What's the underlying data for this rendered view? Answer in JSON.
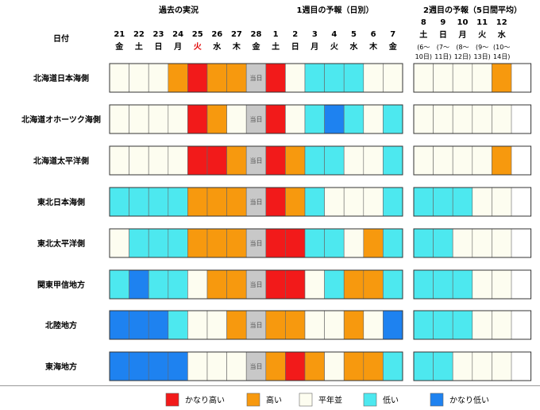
{
  "chart_data": {
    "type": "heatmap",
    "section_titles": [
      "過去の実況",
      "1週目の予報（日別）",
      "2週目の予報（5日間平均）"
    ],
    "row_header": "日付",
    "today_label": "当日",
    "columns_daily": [
      {
        "day": "21",
        "weekday": "金"
      },
      {
        "day": "22",
        "weekday": "土"
      },
      {
        "day": "23",
        "weekday": "日"
      },
      {
        "day": "24",
        "weekday": "月"
      },
      {
        "day": "25",
        "weekday": "火",
        "weekday_color": "#e00000"
      },
      {
        "day": "26",
        "weekday": "水"
      },
      {
        "day": "27",
        "weekday": "木"
      },
      {
        "day": "28",
        "weekday": "金"
      },
      {
        "day": "1",
        "weekday": "土"
      },
      {
        "day": "2",
        "weekday": "日"
      },
      {
        "day": "3",
        "weekday": "月"
      },
      {
        "day": "4",
        "weekday": "火"
      },
      {
        "day": "5",
        "weekday": "水"
      },
      {
        "day": "6",
        "weekday": "木"
      },
      {
        "day": "7",
        "weekday": "金"
      }
    ],
    "columns_week2": [
      {
        "day": "8",
        "weekday": "土",
        "range_open": "(6～",
        "range_close": "10日)"
      },
      {
        "day": "9",
        "weekday": "日",
        "range_open": "(7～",
        "range_close": "11日)"
      },
      {
        "day": "10",
        "weekday": "月",
        "range_open": "(8～",
        "range_close": "12日)"
      },
      {
        "day": "11",
        "weekday": "火",
        "range_open": "(9～",
        "range_close": "13日)"
      },
      {
        "day": "12",
        "weekday": "水",
        "range_open": "(10～",
        "range_close": "14日)"
      }
    ],
    "regions": [
      "北海道日本海側",
      "北海道オホーツク海側",
      "北海道太平洋側",
      "東北日本海側",
      "東北太平洋側",
      "関東甲信地方",
      "北陸地方",
      "東海地方"
    ],
    "categories": [
      {
        "key": "vh",
        "label": "かなり高い",
        "color": "#f21a1a"
      },
      {
        "key": "h",
        "label": "高い",
        "color": "#f7990e"
      },
      {
        "key": "n",
        "label": "平年並",
        "color": "#fdfdf0"
      },
      {
        "key": "l",
        "label": "低い",
        "color": "#4de8ef"
      },
      {
        "key": "vl",
        "label": "かなり低い",
        "color": "#1e82f0"
      }
    ],
    "today_color": "#c8c8c8",
    "values": [
      [
        "n",
        "n",
        "n",
        "h",
        "vh",
        "h",
        "h",
        "today",
        "vh",
        "n",
        "l",
        "l",
        "l",
        "n",
        "n",
        "n",
        "n",
        "n",
        "n",
        "h"
      ],
      [
        "n",
        "n",
        "n",
        "n",
        "vh",
        "h",
        "n",
        "today",
        "vh",
        "n",
        "l",
        "vl",
        "l",
        "n",
        "l",
        "n",
        "n",
        "n",
        "n",
        "n"
      ],
      [
        "n",
        "n",
        "n",
        "n",
        "vh",
        "vh",
        "h",
        "today",
        "vh",
        "h",
        "l",
        "l",
        "n",
        "n",
        "l",
        "n",
        "n",
        "n",
        "n",
        "h"
      ],
      [
        "l",
        "l",
        "l",
        "l",
        "h",
        "h",
        "h",
        "today",
        "vh",
        "h",
        "l",
        "n",
        "n",
        "n",
        "l",
        "l",
        "l",
        "l",
        "n",
        "n"
      ],
      [
        "n",
        "l",
        "l",
        "l",
        "h",
        "h",
        "h",
        "today",
        "vh",
        "vh",
        "l",
        "l",
        "n",
        "h",
        "l",
        "l",
        "l",
        "n",
        "n",
        "n"
      ],
      [
        "l",
        "vl",
        "l",
        "l",
        "n",
        "h",
        "h",
        "today",
        "vh",
        "vh",
        "n",
        "l",
        "h",
        "h",
        "l",
        "l",
        "l",
        "l",
        "n",
        "n"
      ],
      [
        "vl",
        "vl",
        "vl",
        "l",
        "n",
        "n",
        "h",
        "today",
        "h",
        "h",
        "n",
        "n",
        "h",
        "n",
        "vl",
        "l",
        "l",
        "l",
        "n",
        "n"
      ],
      [
        "vl",
        "vl",
        "vl",
        "vl",
        "n",
        "n",
        "n",
        "today",
        "h",
        "vh",
        "h",
        "n",
        "h",
        "h",
        "l",
        "l",
        "l",
        "n",
        "n",
        "n"
      ]
    ]
  }
}
